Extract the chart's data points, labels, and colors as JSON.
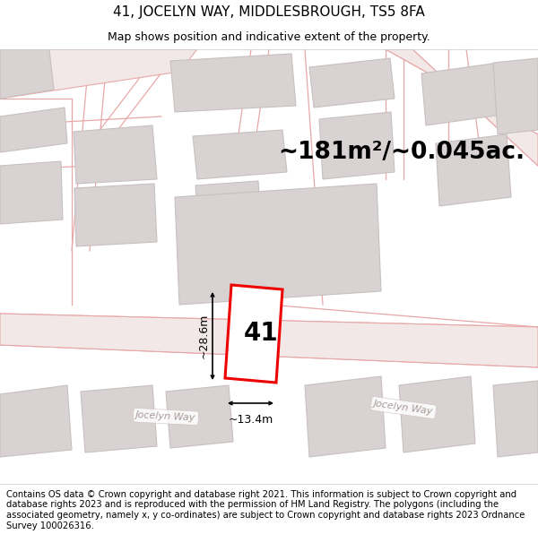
{
  "title_line1": "41, JOCELYN WAY, MIDDLESBROUGH, TS5 8FA",
  "title_line2": "Map shows position and indicative extent of the property.",
  "area_text": "~181m²/~0.045ac.",
  "dim_width": "~13.4m",
  "dim_height": "~28.6m",
  "label_number": "41",
  "road_label_left": "Jocelyn Way",
  "road_label_right": "Jocelyn Way",
  "footer_text": "Contains OS data © Crown copyright and database right 2021. This information is subject to Crown copyright and database rights 2023 and is reproduced with the permission of HM Land Registry. The polygons (including the associated geometry, namely x, y co-ordinates) are subject to Crown copyright and database rights 2023 Ordnance Survey 100026316.",
  "map_bg": "#f7f2f2",
  "road_line_color": "#e8a8a8",
  "road_fill_color": "#f2e8e8",
  "building_fill": "#d9d2d2",
  "building_edge": "#c8c0c0",
  "plot_color": "#ee0000",
  "plot_fill": "#ffffff",
  "title_fontsize": 11,
  "subtitle_fontsize": 9,
  "area_fontsize": 19,
  "label_fontsize": 20,
  "footer_fontsize": 7.2,
  "dim_fontsize": 9
}
